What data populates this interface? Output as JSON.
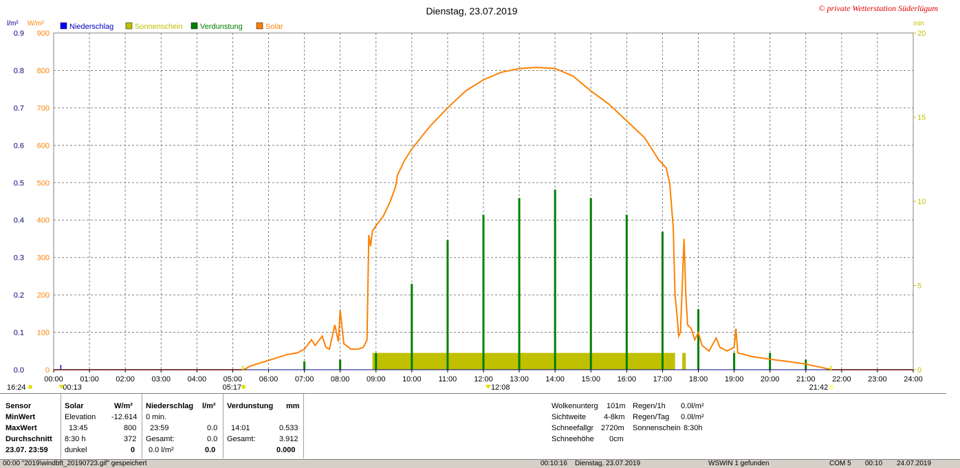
{
  "chart_data": {
    "type": "line",
    "title": "Dienstag, 23.07.2019",
    "copyright": "© private Wetterstation Süderlügum",
    "left_axis_units": [
      "l/m²",
      "W/m²"
    ],
    "right_axis_unit": "min",
    "legend": [
      "Niederschlag",
      "Sonnenschein",
      "Verdunstung",
      "Solar"
    ],
    "colors": {
      "Niederschlag": "#0000ff",
      "Sonnenschein": "#c0c000",
      "Verdunstung": "#008000",
      "Solar": "#ff8000"
    },
    "x_ticks": [
      "00:00",
      "01:00",
      "02:00",
      "03:00",
      "04:00",
      "05:00",
      "06:00",
      "07:00",
      "08:00",
      "09:00",
      "10:00",
      "11:00",
      "12:00",
      "13:00",
      "14:00",
      "15:00",
      "16:00",
      "17:00",
      "18:00",
      "19:00",
      "20:00",
      "21:00",
      "22:00",
      "23:00",
      "24:00"
    ],
    "y_ticks_lm2": [
      "0.0",
      "0.1",
      "0.2",
      "0.3",
      "0.4",
      "0.5",
      "0.6",
      "0.7",
      "0.8",
      "0.9"
    ],
    "y_ticks_wm2": [
      "0",
      "100",
      "200",
      "300",
      "400",
      "500",
      "600",
      "700",
      "800",
      "900"
    ],
    "y_ticks_min": [
      "0",
      "5",
      "10",
      "15",
      "20"
    ],
    "xlim": [
      0,
      24
    ],
    "ylim_wm2": [
      0,
      900
    ],
    "ylim_min": [
      0,
      20
    ],
    "solar_series": [
      [
        0,
        0
      ],
      [
        5.3,
        0
      ],
      [
        5.5,
        10
      ],
      [
        6.0,
        25
      ],
      [
        6.5,
        40
      ],
      [
        6.8,
        45
      ],
      [
        7.0,
        55
      ],
      [
        7.2,
        80
      ],
      [
        7.3,
        65
      ],
      [
        7.5,
        90
      ],
      [
        7.6,
        60
      ],
      [
        7.7,
        55
      ],
      [
        7.85,
        120
      ],
      [
        7.95,
        75
      ],
      [
        8.0,
        160
      ],
      [
        8.1,
        70
      ],
      [
        8.3,
        55
      ],
      [
        8.5,
        55
      ],
      [
        8.65,
        60
      ],
      [
        8.75,
        80
      ],
      [
        8.8,
        360
      ],
      [
        8.85,
        330
      ],
      [
        8.9,
        370
      ],
      [
        9.0,
        385
      ],
      [
        9.2,
        410
      ],
      [
        9.4,
        450
      ],
      [
        9.55,
        490
      ],
      [
        9.6,
        520
      ],
      [
        9.8,
        560
      ],
      [
        10.0,
        590
      ],
      [
        10.5,
        650
      ],
      [
        11.0,
        700
      ],
      [
        11.5,
        745
      ],
      [
        12.0,
        775
      ],
      [
        12.5,
        795
      ],
      [
        13.0,
        805
      ],
      [
        13.5,
        808
      ],
      [
        14.0,
        805
      ],
      [
        14.5,
        785
      ],
      [
        15.0,
        745
      ],
      [
        15.5,
        710
      ],
      [
        16.0,
        665
      ],
      [
        16.5,
        620
      ],
      [
        16.9,
        560
      ],
      [
        17.1,
        540
      ],
      [
        17.2,
        500
      ],
      [
        17.3,
        380
      ],
      [
        17.35,
        200
      ],
      [
        17.4,
        150
      ],
      [
        17.45,
        90
      ],
      [
        17.5,
        100
      ],
      [
        17.6,
        350
      ],
      [
        17.65,
        200
      ],
      [
        17.7,
        120
      ],
      [
        17.8,
        110
      ],
      [
        17.9,
        80
      ],
      [
        18.0,
        100
      ],
      [
        18.1,
        65
      ],
      [
        18.3,
        50
      ],
      [
        18.5,
        85
      ],
      [
        18.6,
        60
      ],
      [
        18.8,
        50
      ],
      [
        19.0,
        60
      ],
      [
        19.05,
        110
      ],
      [
        19.1,
        45
      ],
      [
        19.5,
        35
      ],
      [
        20.0,
        28
      ],
      [
        20.5,
        22
      ],
      [
        21.0,
        15
      ],
      [
        21.5,
        5
      ],
      [
        21.7,
        0
      ],
      [
        24,
        0
      ]
    ],
    "sunshine_min": [
      [
        8.9,
        17.35,
        1
      ],
      [
        17.55,
        17.65,
        1
      ]
    ],
    "evaporation_min": [
      [
        7.0,
        0.5
      ],
      [
        8.0,
        0.6
      ],
      [
        9.0,
        1.0
      ],
      [
        10.0,
        5.1
      ],
      [
        11.0,
        7.7
      ],
      [
        12.0,
        9.2
      ],
      [
        13.0,
        10.2
      ],
      [
        14.0,
        10.7
      ],
      [
        15.0,
        10.2
      ],
      [
        16.0,
        9.2
      ],
      [
        17.0,
        8.2
      ],
      [
        18.0,
        3.6
      ],
      [
        19.0,
        1.0
      ],
      [
        20.0,
        1.0
      ],
      [
        21.0,
        0.6
      ]
    ],
    "precipitation_lm2": [
      [
        0.2,
        0.01
      ]
    ],
    "events": {
      "day_length_left": "16:24",
      "moon_rise": "00:13",
      "sunrise": "05:17",
      "noon": "12:08",
      "sunset": "21:42"
    }
  },
  "panel": {
    "rows_label": [
      "Sensor",
      "MinWert",
      "MaxWert",
      "Durchschnitt",
      "23.07. 23:59"
    ],
    "solar": {
      "header": "Solar",
      "unit": "W/m²",
      "min_label": "Elevation",
      "min_value": "-12.614",
      "max_label": "13:45",
      "max_value": "800",
      "avg_label": "8:30 h",
      "avg_value": "372",
      "cur_label": "dunkel",
      "cur_value": "0"
    },
    "precip": {
      "header": "Niederschlag",
      "unit": "l/m²",
      "min_label": "0 min.",
      "min_value": "",
      "max_label": "23:59",
      "max_value": "0.0",
      "avg_label": "Gesamt:",
      "avg_value": "0.0",
      "cur_label": "0.0 l/m²",
      "cur_value": "0.0"
    },
    "evap": {
      "header": "Verdunstung",
      "unit": "mm",
      "max_label": "14:01",
      "max_value": "0.533",
      "avg_label": "Gesamt:",
      "avg_value": "3.912",
      "cur_value": "0.000"
    },
    "extra1": [
      {
        "label": "Wolkenunterg",
        "value": "101m"
      },
      {
        "label": "Sichtweite",
        "value": "4-8km"
      },
      {
        "label": "Schneefallgr",
        "value": "2720m"
      },
      {
        "label": "Schneehöhe",
        "value": "0cm"
      }
    ],
    "extra2": [
      {
        "label": "Regen/1h",
        "value": "0.0l/m²"
      },
      {
        "label": "Regen/Tag",
        "value": "0.0l/m²"
      },
      {
        "label": "Sonnenschein",
        "value": "8:30h"
      }
    ]
  },
  "status": {
    "s1": "00:00  \"2019\\windbft_20190723.gif\" gespeichert",
    "s2": "00:10:16",
    "s3": "Dienstag, 23.07.2019",
    "s4": "WSWIN 1 gefunden",
    "s5": "COM 5",
    "s6": "00:10",
    "s7": "24.07.2019"
  }
}
